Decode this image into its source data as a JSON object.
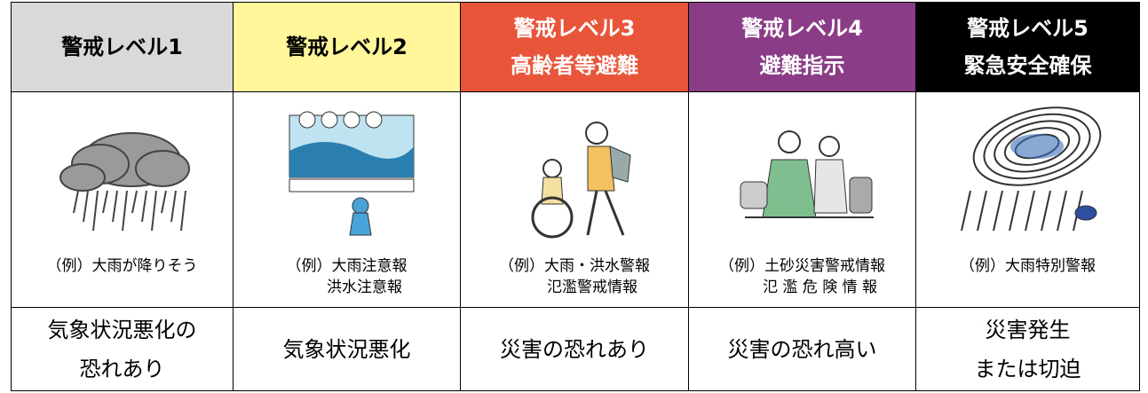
{
  "columns": [
    {
      "level": "警戒レベル1",
      "example": [
        "（例）大雨が降りそう"
      ],
      "status": [
        "気象状況悪化の",
        "恐れあり"
      ]
    },
    {
      "level": "警戒レベル2",
      "example": [
        "（例）大雨注意報",
        "洪水注意報"
      ],
      "status": [
        "気象状況悪化"
      ]
    },
    {
      "level": "警戒レベル3",
      "action": "高齢者等避難",
      "example": [
        "（例）大雨・洪水警報",
        "氾濫警戒情報"
      ],
      "status": [
        "災害の恐れあり"
      ]
    },
    {
      "level": "警戒レベル4",
      "action": "避難指示",
      "example": [
        "（例）土砂災害警戒情報",
        "氾 濫 危 険 情 報"
      ],
      "status": [
        "災害の恐れ高い"
      ]
    },
    {
      "level": "警戒レベル5",
      "action": "緊急安全確保",
      "example": [
        "（例）大雨特別警報"
      ],
      "status": [
        "災害発生",
        "または切迫"
      ]
    }
  ]
}
